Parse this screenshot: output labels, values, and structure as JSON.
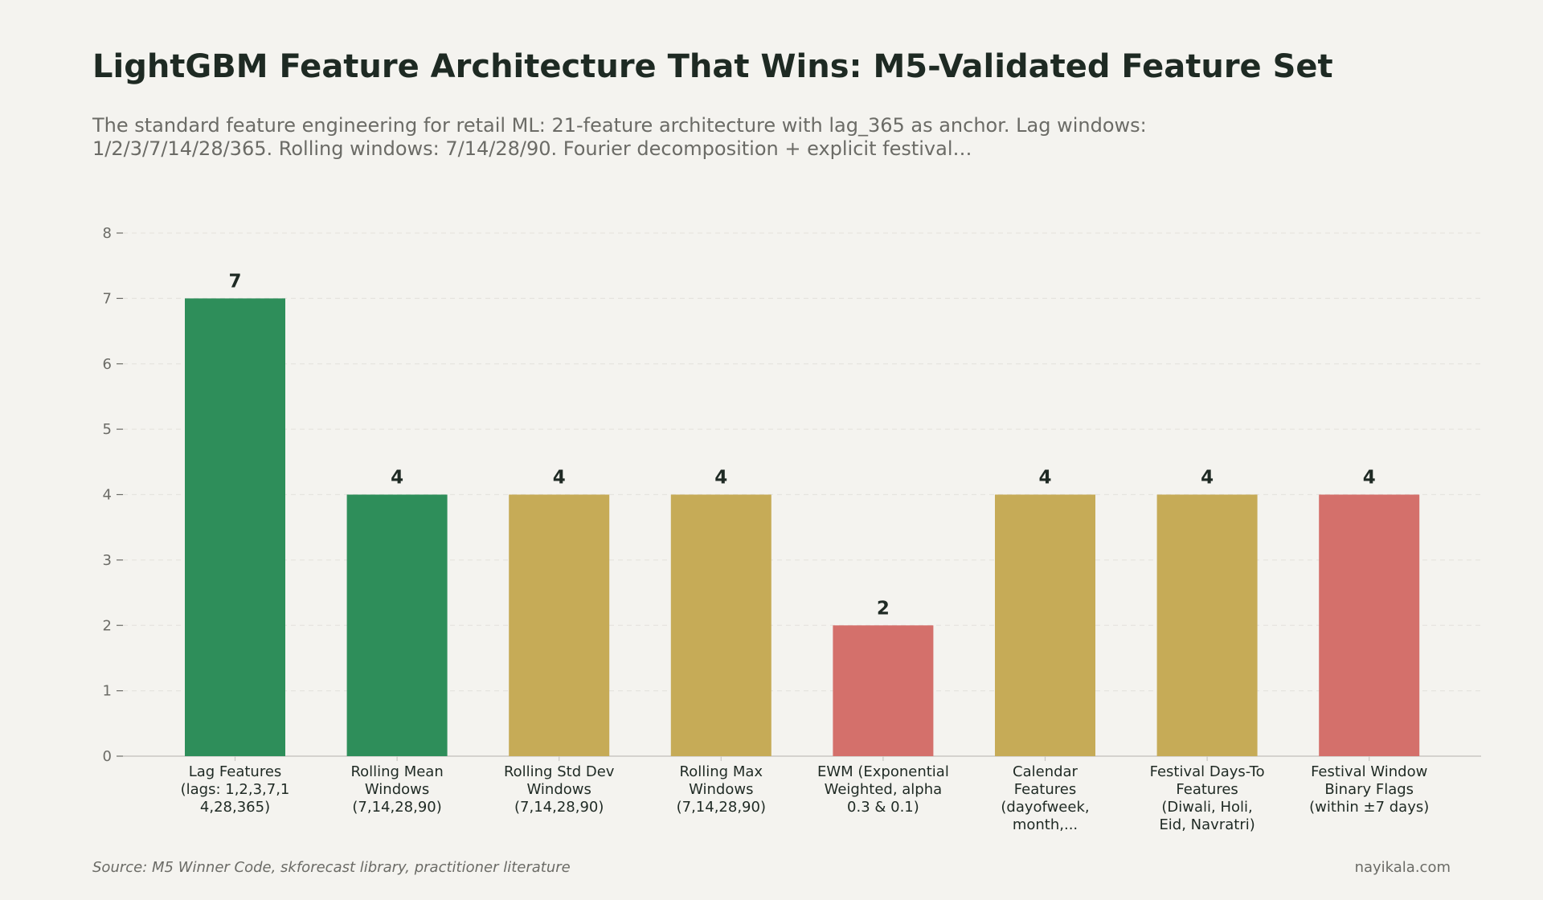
{
  "title": "LightGBM Feature Architecture That Wins: M5-Validated Feature Set",
  "subtitle": "The standard feature engineering for retail ML: 21-feature architecture with lag_365 as anchor. Lag windows: 1/2/3/7/14/28/365. Rolling windows: 7/14/28/90. Fourier decomposition + explicit festival…",
  "footer": {
    "source": "Source: M5 Winner Code, skforecast library, practitioner literature",
    "brand": "nayikala.com"
  },
  "colors": {
    "green": "#2e8e5a",
    "gold": "#c6ab57",
    "red": "#d4706b",
    "grid": "#e6e4df",
    "axis": "#c9c8c3",
    "tick_text": "#6b6b66",
    "label_text": "#1f2a24"
  },
  "chart_data": {
    "type": "bar",
    "categories": [
      [
        "Lag Features",
        "(lags: 1,2,3,7,1",
        "4,28,365)"
      ],
      [
        "Rolling Mean",
        "Windows",
        "(7,14,28,90)"
      ],
      [
        "Rolling Std Dev",
        "Windows",
        "(7,14,28,90)"
      ],
      [
        "Rolling Max",
        "Windows",
        "(7,14,28,90)"
      ],
      [
        "EWM (Exponential",
        "Weighted, alpha",
        "0.3 & 0.1)"
      ],
      [
        "Calendar",
        "Features",
        "(dayofweek,",
        "month,..."
      ],
      [
        "Festival Days-To",
        "Features",
        "(Diwali, Holi,",
        "Eid, Navratri)"
      ],
      [
        "Festival Window",
        "Binary Flags",
        "(within ±7 days)"
      ]
    ],
    "values": [
      7,
      4,
      4,
      4,
      2,
      4,
      4,
      4
    ],
    "bar_colors": [
      "green",
      "green",
      "gold",
      "gold",
      "red",
      "gold",
      "gold",
      "red"
    ],
    "xlabel": "",
    "ylabel": "",
    "ylim": [
      0,
      8
    ],
    "yticks": [
      "0",
      "1",
      "2",
      "3",
      "4",
      "5",
      "6",
      "7",
      "8"
    ],
    "grid": true,
    "data_labels": [
      "7",
      "4",
      "4",
      "4",
      "2",
      "4",
      "4",
      "4"
    ]
  }
}
